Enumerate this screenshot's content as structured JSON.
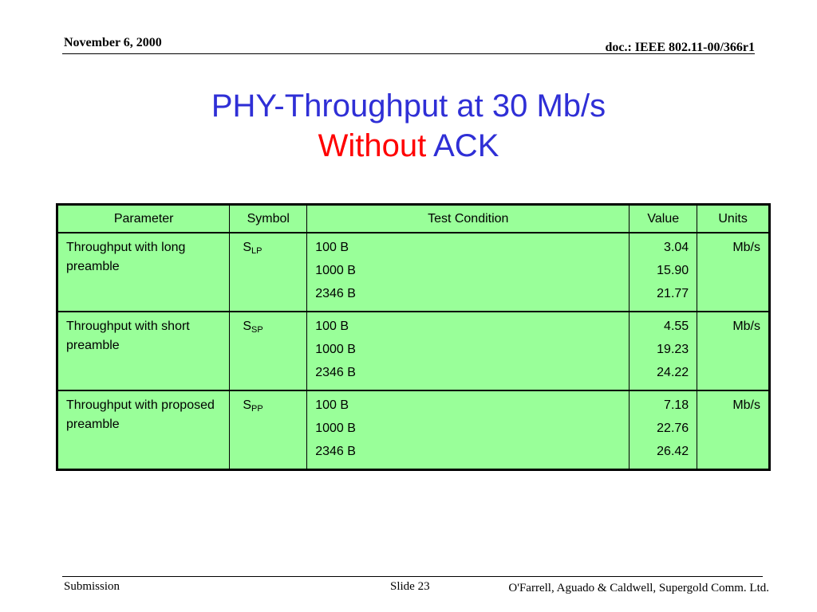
{
  "header": {
    "date": "November 6, 2000",
    "doc_id": "doc.: IEEE 802.11-00/366r1"
  },
  "title": {
    "line1": "PHY-Throughput at 30 Mb/s",
    "line2_red": "Without",
    "line2_rest": " ACK"
  },
  "colors": {
    "title_blue": "#2f2fd6",
    "title_red": "#ff0000",
    "table_bg": "#99ff99"
  },
  "table": {
    "headers": [
      "Parameter",
      "Symbol",
      "Test Condition",
      "Value",
      "Units"
    ],
    "rows": [
      {
        "parameter": "Throughput with long preamble",
        "symbol_base": "S",
        "symbol_sub": "LP",
        "conditions": [
          "100 B",
          "1000 B",
          "2346 B"
        ],
        "values": [
          "3.04",
          "15.90",
          "21.77"
        ],
        "units": "Mb/s"
      },
      {
        "parameter": "Throughput with short preamble",
        "symbol_base": "S",
        "symbol_sub": "SP",
        "conditions": [
          "100 B",
          "1000 B",
          "2346 B"
        ],
        "values": [
          "4.55",
          "19.23",
          "24.22"
        ],
        "units": "Mb/s"
      },
      {
        "parameter": "Throughput with proposed preamble",
        "symbol_base": "S",
        "symbol_sub": "PP",
        "conditions": [
          "100 B",
          "1000 B",
          "2346 B"
        ],
        "values": [
          "7.18",
          "22.76",
          "26.42"
        ],
        "units": "Mb/s"
      }
    ]
  },
  "footer": {
    "left": "Submission",
    "middle": "Slide 23",
    "right": "O'Farrell, Aguado & Caldwell, Supergold Comm. Ltd."
  }
}
